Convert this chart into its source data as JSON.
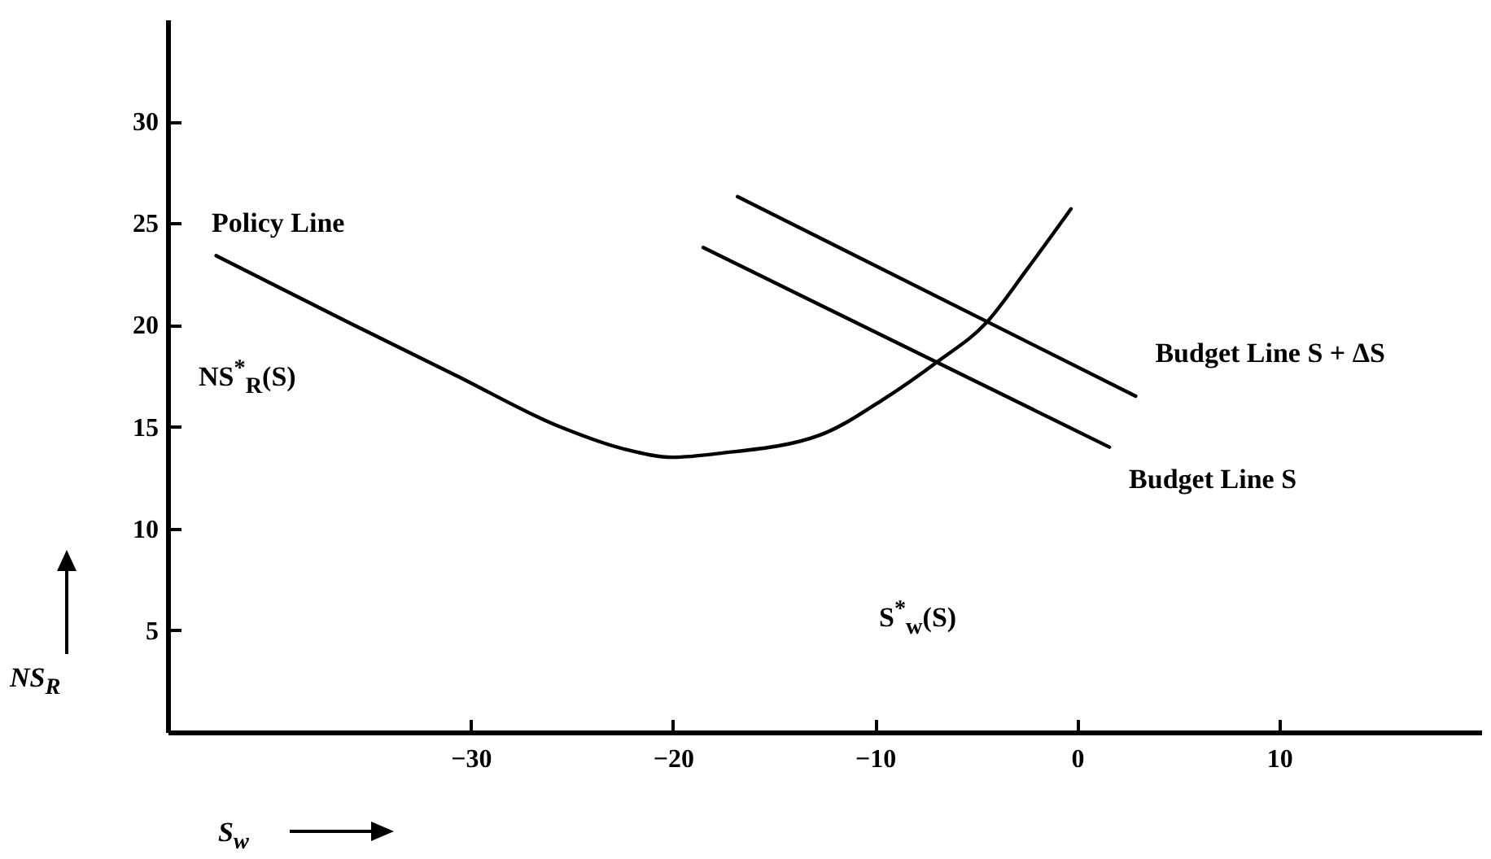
{
  "chart_data": {
    "type": "line",
    "xlabel": "S$_{w}$",
    "ylabel": "NS$_{R}$",
    "xlim": [
      -45,
      20
    ],
    "ylim": [
      0,
      35
    ],
    "xticks": [
      -30,
      -20,
      -10,
      0,
      10
    ],
    "yticks": [
      5,
      10,
      15,
      20,
      25,
      30
    ],
    "series": [
      {
        "color": "#000000",
        "x": [
          -42.6,
          -36,
          -30.7,
          -25.6,
          -22.4,
          -20,
          -17.6,
          -12.7,
          -9.5,
          -6.9,
          -4.5,
          -2.5,
          -0.3
        ],
        "values": [
          23.4,
          20.1,
          17.5,
          15.0,
          13.9,
          13.5,
          13.7,
          14.6,
          16.4,
          18.2,
          20.1,
          22.7,
          25.7
        ]
      },
      {
        "name": "Budget Line S",
        "color": "#000000",
        "x": [
          -18.5,
          1.6
        ],
        "values": [
          23.8,
          14.0
        ]
      },
      {
        "name": "Budget Line S + ΔS",
        "color": "#000000",
        "x": [
          -16.8,
          2.9
        ],
        "values": [
          26.3,
          16.5
        ]
      }
    ],
    "annotations": [
      "Policy Line",
      "NS$^{*}$$_{R}$(S)",
      "S$^{*}$$_{w}$(S)"
    ]
  }
}
